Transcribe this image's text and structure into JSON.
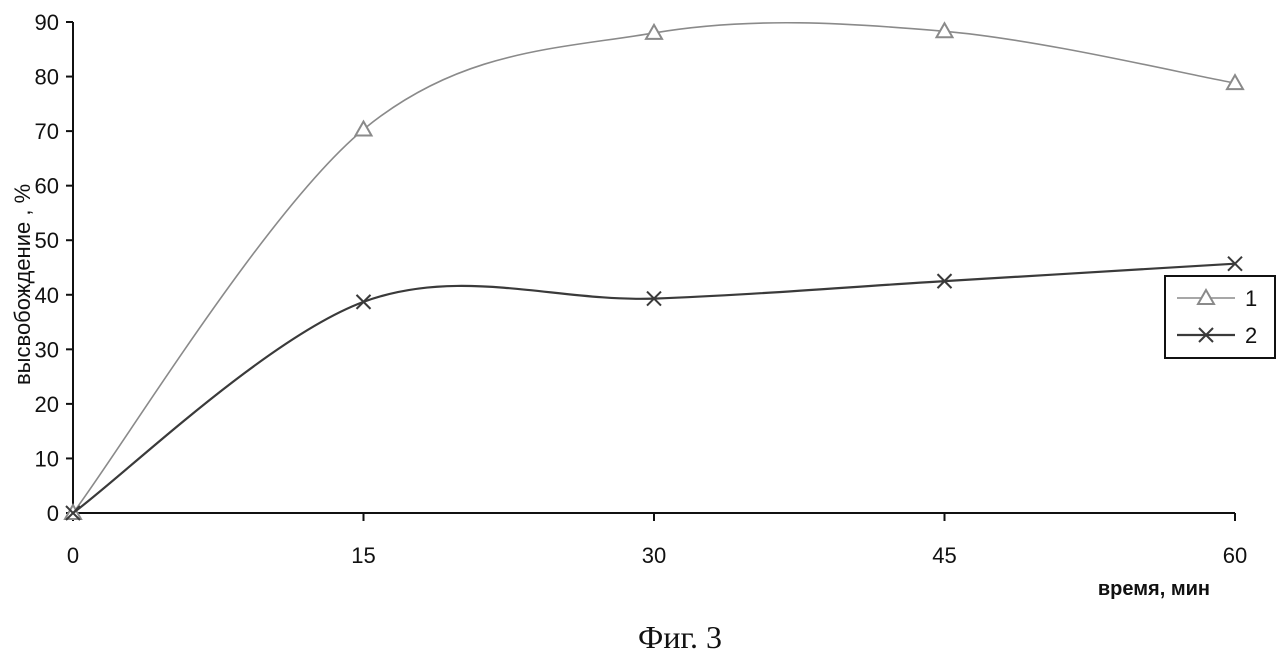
{
  "chart_data": {
    "type": "line",
    "x": [
      0,
      15,
      30,
      45,
      60
    ],
    "x_ticks": [
      "0",
      "15",
      "30",
      "45",
      "60"
    ],
    "y_ticks": [
      "0",
      "10",
      "20",
      "30",
      "40",
      "50",
      "60",
      "70",
      "80",
      "90"
    ],
    "xlim": [
      0,
      60
    ],
    "ylim": [
      0,
      90
    ],
    "xlabel": "время, мин",
    "ylabel": "высвобождение , %",
    "grid": false,
    "legend_position": "right",
    "smooth": true,
    "series": [
      {
        "name": "1",
        "values": [
          0,
          70.3,
          88,
          88.3,
          78.8
        ],
        "marker": "triangle",
        "color": "#8a8a8a"
      },
      {
        "name": "2",
        "values": [
          0,
          38.7,
          39.3,
          42.5,
          45.7
        ],
        "marker": "x",
        "color": "#3a3a3a"
      }
    ]
  },
  "caption": "Фиг. 3"
}
